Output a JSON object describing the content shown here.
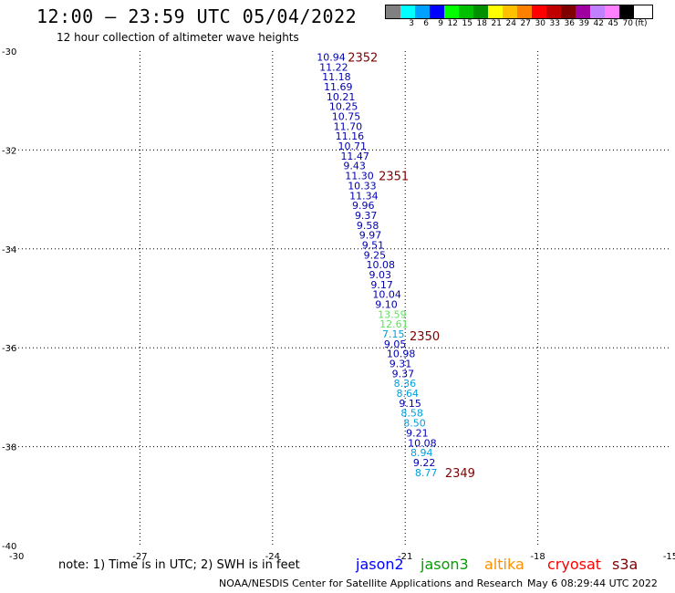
{
  "header": {
    "title": "12:00 – 23:59 UTC 05/04/2022",
    "subtitle": "12 hour collection of altimeter wave heights"
  },
  "scale": {
    "unit": "(ft)",
    "colors": [
      "#808080",
      "#00ffff",
      "#00a0ff",
      "#0000ff",
      "#00ff00",
      "#00c000",
      "#009000",
      "#ffff00",
      "#ffc000",
      "#ff8000",
      "#ff0000",
      "#c00000",
      "#800000",
      "#a000a0",
      "#c080ff",
      "#ff80ff",
      "#000000"
    ],
    "labels": [
      "",
      "3",
      "6",
      "9",
      "12",
      "15",
      "18",
      "21",
      "24",
      "27",
      "30",
      "33",
      "36",
      "39",
      "42",
      "45",
      "70"
    ]
  },
  "chart_data": {
    "type": "scatter",
    "xlim": [
      -30,
      -15
    ],
    "ylim": [
      -40,
      -30
    ],
    "x_ticks": [
      -30,
      -27,
      -24,
      -21,
      -18,
      -15
    ],
    "y_ticks": [
      -30,
      -32,
      -34,
      -36,
      -38,
      -40
    ],
    "x_tick_labels": [
      "-30",
      "-27",
      "-24",
      "-21",
      "-18",
      "-15"
    ],
    "y_tick_labels": [
      "-30",
      "-32",
      "-34",
      "-36",
      "-38",
      "-40"
    ],
    "grid": true,
    "points": [
      {
        "x": -23.0,
        "y": -30.12,
        "v": "10.94",
        "c": "#0000b0"
      },
      {
        "x": -22.94,
        "y": -30.32,
        "v": "11.22",
        "c": "#0000b0"
      },
      {
        "x": -22.88,
        "y": -30.52,
        "v": "11.18",
        "c": "#0000b0"
      },
      {
        "x": -22.84,
        "y": -30.72,
        "v": "11.69",
        "c": "#0000b0"
      },
      {
        "x": -22.78,
        "y": -30.92,
        "v": "10.21",
        "c": "#0000b0"
      },
      {
        "x": -22.72,
        "y": -31.12,
        "v": "10.25",
        "c": "#0000b0"
      },
      {
        "x": -22.66,
        "y": -31.32,
        "v": "10.75",
        "c": "#0000b0"
      },
      {
        "x": -22.62,
        "y": -31.52,
        "v": "11.70",
        "c": "#0000b0"
      },
      {
        "x": -22.58,
        "y": -31.72,
        "v": "11.16",
        "c": "#0000b0"
      },
      {
        "x": -22.52,
        "y": -31.92,
        "v": "10.71",
        "c": "#0000b0"
      },
      {
        "x": -22.46,
        "y": -32.12,
        "v": "11.47",
        "c": "#0000b0"
      },
      {
        "x": -22.4,
        "y": -32.32,
        "v": "9.43",
        "c": "#0000b0"
      },
      {
        "x": -22.36,
        "y": -32.52,
        "v": "11.30",
        "c": "#0000b0"
      },
      {
        "x": -22.3,
        "y": -32.72,
        "v": "10.33",
        "c": "#0000b0"
      },
      {
        "x": -22.26,
        "y": -32.92,
        "v": "11.34",
        "c": "#0000b0"
      },
      {
        "x": -22.2,
        "y": -33.12,
        "v": "9.96",
        "c": "#0000b0"
      },
      {
        "x": -22.14,
        "y": -33.32,
        "v": "9.37",
        "c": "#0000b0"
      },
      {
        "x": -22.1,
        "y": -33.52,
        "v": "9.58",
        "c": "#0000b0"
      },
      {
        "x": -22.04,
        "y": -33.72,
        "v": "9.97",
        "c": "#0000b0"
      },
      {
        "x": -21.98,
        "y": -33.92,
        "v": "9.51",
        "c": "#0000b0"
      },
      {
        "x": -21.94,
        "y": -34.12,
        "v": "9.25",
        "c": "#0000b0"
      },
      {
        "x": -21.88,
        "y": -34.32,
        "v": "10.08",
        "c": "#0000b0"
      },
      {
        "x": -21.82,
        "y": -34.52,
        "v": "9.03",
        "c": "#0000b0"
      },
      {
        "x": -21.78,
        "y": -34.72,
        "v": "9.17",
        "c": "#0000b0"
      },
      {
        "x": -21.74,
        "y": -34.92,
        "v": "10.04",
        "c": "#0000b0"
      },
      {
        "x": -21.68,
        "y": -35.12,
        "v": "9.10",
        "c": "#0000b0"
      },
      {
        "x": -21.62,
        "y": -35.32,
        "v": "13.59",
        "c": "#60e060"
      },
      {
        "x": -21.58,
        "y": -35.52,
        "v": "12.61",
        "c": "#60e060"
      },
      {
        "x": -21.52,
        "y": -35.72,
        "v": "7.15",
        "c": "#00a0e0"
      },
      {
        "x": -21.48,
        "y": -35.92,
        "v": "9.05",
        "c": "#0000b0"
      },
      {
        "x": -21.42,
        "y": -36.12,
        "v": "10.98",
        "c": "#0000b0"
      },
      {
        "x": -21.36,
        "y": -36.32,
        "v": "9.31",
        "c": "#0000b0"
      },
      {
        "x": -21.3,
        "y": -36.52,
        "v": "9.37",
        "c": "#0000b0"
      },
      {
        "x": -21.26,
        "y": -36.72,
        "v": "8.36",
        "c": "#00a0e0"
      },
      {
        "x": -21.2,
        "y": -36.92,
        "v": "8.64",
        "c": "#00a0e0"
      },
      {
        "x": -21.14,
        "y": -37.12,
        "v": "9.15",
        "c": "#0000b0"
      },
      {
        "x": -21.1,
        "y": -37.32,
        "v": "8.58",
        "c": "#00a0e0"
      },
      {
        "x": -21.04,
        "y": -37.52,
        "v": "8.50",
        "c": "#00a0e0"
      },
      {
        "x": -20.98,
        "y": -37.72,
        "v": "9.21",
        "c": "#0000b0"
      },
      {
        "x": -20.94,
        "y": -37.92,
        "v": "10.08",
        "c": "#0000b0"
      },
      {
        "x": -20.88,
        "y": -38.12,
        "v": "8.94",
        "c": "#00a0e0"
      },
      {
        "x": -20.82,
        "y": -38.32,
        "v": "9.22",
        "c": "#0000b0"
      },
      {
        "x": -20.78,
        "y": -38.52,
        "v": "8.77",
        "c": "#00a0e0"
      }
    ],
    "annotations": [
      {
        "x": -22.3,
        "y": -30.12,
        "text": "2352"
      },
      {
        "x": -21.6,
        "y": -32.52,
        "text": "2351"
      },
      {
        "x": -20.9,
        "y": -35.76,
        "text": "2350"
      },
      {
        "x": -20.1,
        "y": -38.52,
        "text": "2349"
      }
    ]
  },
  "note": "note: 1) Time is in UTC; 2) SWH is in feet",
  "legend": [
    {
      "name": "jason2",
      "color": "#0000ff"
    },
    {
      "name": "jason3",
      "color": "#00a000"
    },
    {
      "name": "altika",
      "color": "#ff9000"
    },
    {
      "name": "cryosat",
      "color": "#ff0000"
    },
    {
      "name": "s3a",
      "color": "#800000"
    }
  ],
  "footer": {
    "credit": "NOAA/NESDIS Center for Satellite Applications and Research",
    "timestamp": "May  6 08:29:44 UTC 2022"
  }
}
